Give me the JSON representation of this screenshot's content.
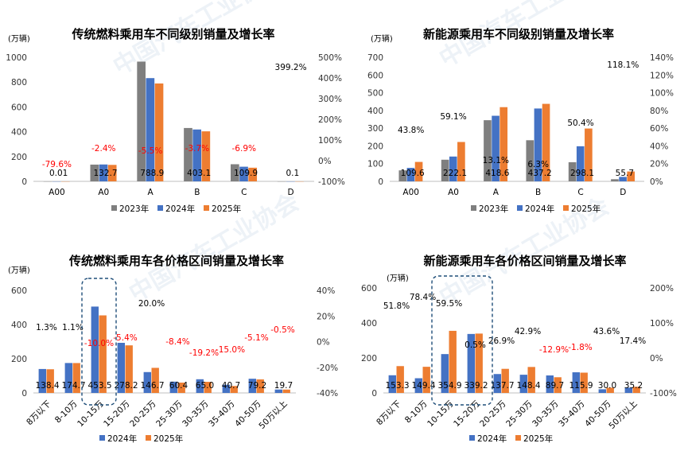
{
  "watermark": "中国汽车工业协会",
  "colors": {
    "y2023": "#7f7f7f",
    "y2024": "#4472c4",
    "y2025": "#ed7d31",
    "neg": "#ff0000",
    "pos": "#000000",
    "box": "#1f4e79"
  },
  "chart_data": [
    {
      "type": "bar",
      "title": "传统燃料乘用车不同级别销量及增长率",
      "unit_label": "(万辆)",
      "categories": [
        "A00",
        "A0",
        "A",
        "B",
        "C",
        "D"
      ],
      "ylim": [
        0,
        1000
      ],
      "y2lim": [
        -100,
        500
      ],
      "y_ticks": [
        "0",
        "200",
        "400",
        "600",
        "800",
        "1000"
      ],
      "y2_ticks": [
        "-100%",
        "0%",
        "100%",
        "200%",
        "300%",
        "400%",
        "500%"
      ],
      "series": [
        {
          "name": "2023年",
          "values": [
            0.05,
            135,
            965,
            430,
            138,
            0.05
          ]
        },
        {
          "name": "2024年",
          "values": [
            0.05,
            136,
            832,
            418,
            118,
            0.05
          ]
        },
        {
          "name": "2025年",
          "values": [
            0.01,
            132.7,
            788.9,
            403.1,
            109.9,
            0.1
          ]
        }
      ],
      "value_labels": [
        "0.01",
        "132.7",
        "788.9",
        "403.1",
        "109.9",
        "0.1"
      ],
      "growth": [
        -79.6,
        -2.4,
        -5.5,
        -3.7,
        -6.9,
        399.2
      ],
      "growth_labels": [
        "-79.6%",
        "-2.4%",
        "-5.5%",
        "-3.7%",
        "-6.9%",
        "399.2%"
      ],
      "legend": [
        "2023年",
        "2024年",
        "2025年"
      ]
    },
    {
      "type": "bar",
      "title": "新能源乘用车不同级别销量及增长率",
      "unit_label": "(万辆)",
      "categories": [
        "A00",
        "A0",
        "A",
        "B",
        "C",
        "D"
      ],
      "ylim": [
        0,
        700
      ],
      "y2lim": [
        0,
        140
      ],
      "y_ticks": [
        "0",
        "100",
        "200",
        "300",
        "400",
        "500",
        "600",
        "700"
      ],
      "y2_ticks": [
        "0%",
        "20%",
        "40%",
        "60%",
        "80%",
        "100%",
        "120%",
        "140%"
      ],
      "series": [
        {
          "name": "2023年",
          "values": [
            62,
            122,
            345,
            232,
            108,
            12
          ]
        },
        {
          "name": "2024年",
          "values": [
            76,
            140,
            370,
            411,
            198,
            25
          ]
        },
        {
          "name": "2025年",
          "values": [
            109.6,
            222.1,
            418.6,
            437.2,
            298.1,
            55.7
          ]
        }
      ],
      "value_labels": [
        "109.6",
        "222.1",
        "418.6",
        "437.2",
        "298.1",
        "55.7"
      ],
      "growth": [
        43.8,
        59.1,
        13.1,
        6.3,
        50.4,
        118.1
      ],
      "growth_labels": [
        "43.8%",
        "59.1%",
        "13.1%",
        "6.3%",
        "50.4%",
        "118.1%"
      ],
      "legend": [
        "2023年",
        "2024年",
        "2025年"
      ]
    },
    {
      "type": "bar",
      "title": "传统燃料乘用车各价格区间销量及增长率",
      "unit_label": "(万辆)",
      "categories": [
        "8万以下",
        "8-10万",
        "10-15万",
        "15-20万",
        "20-25万",
        "25-30万",
        "30-35万",
        "35-40万",
        "40-50万",
        "50万以上"
      ],
      "ylim": [
        0,
        600
      ],
      "y2lim": [
        -40,
        40
      ],
      "y_ticks": [
        "0",
        "200",
        "400",
        "600"
      ],
      "y2_ticks": [
        "-40%",
        "-20%",
        "0%",
        "20%",
        "40%"
      ],
      "series": [
        {
          "name": "2024年",
          "values": [
            140,
            175,
            505,
            293,
            122,
            66,
            80,
            48,
            83,
            20
          ]
        },
        {
          "name": "2025年",
          "values": [
            138.4,
            174.7,
            453.5,
            278.2,
            146.7,
            60.4,
            65.0,
            40.7,
            79.2,
            19.7
          ]
        }
      ],
      "value_labels": [
        "138.4",
        "174.7",
        "453.5",
        "278.2",
        "146.7",
        "60.4",
        "65.0",
        "40.7",
        "79.2",
        "19.7"
      ],
      "growth": [
        1.3,
        1.1,
        -10.0,
        -5.4,
        20.0,
        -8.4,
        -19.2,
        -15.0,
        -5.1,
        -0.5
      ],
      "growth_labels": [
        "1.3%",
        "1.1%",
        "-10.0%",
        "-5.4%",
        "20.0%",
        "-8.4%",
        "-19.2%",
        "-15.0%",
        "-5.1%",
        "-0.5%"
      ],
      "highlight_category": "10-15万",
      "legend": [
        "2024年",
        "2025年"
      ]
    },
    {
      "type": "bar",
      "title": "新能源乘用车各价格区间销量及增长率",
      "unit_label": "(万辆)",
      "categories": [
        "8万以下",
        "8-10万",
        "10-15万",
        "15-20万",
        "20-25万",
        "25-30万",
        "30-35万",
        "35-40万",
        "40-50万",
        "50万以上"
      ],
      "ylim": [
        0,
        600
      ],
      "y2lim": [
        -100,
        200
      ],
      "y_ticks": [
        "0",
        "200",
        "400",
        "600"
      ],
      "y2_ticks": [
        "-100%",
        "0%",
        "100%",
        "200%"
      ],
      "series": [
        {
          "name": "2024年",
          "values": [
            101,
            84,
            222,
            337,
            108,
            104,
            100,
            118,
            21,
            30
          ]
        },
        {
          "name": "2025年",
          "values": [
            153.3,
            149.4,
            354.9,
            339.2,
            137.7,
            148.4,
            89.7,
            115.9,
            30.0,
            35.2
          ]
        }
      ],
      "value_labels": [
        "153.3",
        "149.4",
        "354.9",
        "339.2",
        "137.7",
        "148.4",
        "89.7",
        "115.9",
        "30.0",
        "35.2"
      ],
      "growth": [
        51.8,
        78.4,
        59.5,
        0.5,
        26.9,
        42.9,
        -12.9,
        -1.8,
        43.6,
        17.4
      ],
      "growth_labels": [
        "51.8%",
        "78.4%",
        "59.5%",
        "0.5%",
        "26.9%",
        "42.9%",
        "-12.9%",
        "-1.8%",
        "43.6%",
        "17.4%"
      ],
      "highlight_category": "10-15万",
      "legend": [
        "2024年",
        "2025年"
      ]
    }
  ]
}
